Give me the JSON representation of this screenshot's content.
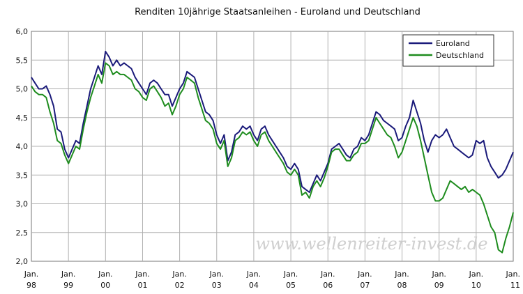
{
  "chart_data": {
    "type": "line",
    "title": "Renditen 10jährige Staatsanleihen - Euroland und Deutschland",
    "xlabel": "",
    "ylabel": "",
    "xlim": [
      1998.0,
      2011.0
    ],
    "ylim": [
      2.0,
      6.0
    ],
    "grid": true,
    "legend_position": "top-right",
    "watermark": "www.wellenreiter-invest.de",
    "y_ticks": [
      {
        "value": 2.0,
        "label": "2,0"
      },
      {
        "value": 2.5,
        "label": "2,5"
      },
      {
        "value": 3.0,
        "label": "3,0"
      },
      {
        "value": 3.5,
        "label": "3,5"
      },
      {
        "value": 4.0,
        "label": "4,0"
      },
      {
        "value": 4.5,
        "label": "4,5"
      },
      {
        "value": 5.0,
        "label": "5,0"
      },
      {
        "value": 5.5,
        "label": "5,5"
      },
      {
        "value": 6.0,
        "label": "6,0"
      }
    ],
    "x_ticks": [
      {
        "value": 1998,
        "month": "Jan.",
        "year": "98"
      },
      {
        "value": 1999,
        "month": "Jan.",
        "year": "99"
      },
      {
        "value": 2000,
        "month": "Jan.",
        "year": "00"
      },
      {
        "value": 2001,
        "month": "Jan.",
        "year": "01"
      },
      {
        "value": 2002,
        "month": "Jan.",
        "year": "02"
      },
      {
        "value": 2003,
        "month": "Jan.",
        "year": "03"
      },
      {
        "value": 2004,
        "month": "Jan.",
        "year": "04"
      },
      {
        "value": 2005,
        "month": "Jan.",
        "year": "05"
      },
      {
        "value": 2006,
        "month": "Jan.",
        "year": "06"
      },
      {
        "value": 2007,
        "month": "Jan.",
        "year": "07"
      },
      {
        "value": 2008,
        "month": "Jan.",
        "year": "08"
      },
      {
        "value": 2009,
        "month": "Jan.",
        "year": "09"
      },
      {
        "value": 2010,
        "month": "Jan.",
        "year": "10"
      },
      {
        "value": 2011,
        "month": "Jan.",
        "year": "11"
      }
    ],
    "series": [
      {
        "name": "Euroland",
        "color": "#1a1a7a",
        "points": [
          [
            1998.0,
            5.2
          ],
          [
            1998.1,
            5.1
          ],
          [
            1998.2,
            5.0
          ],
          [
            1998.3,
            5.0
          ],
          [
            1998.4,
            5.05
          ],
          [
            1998.5,
            4.9
          ],
          [
            1998.6,
            4.7
          ],
          [
            1998.7,
            4.3
          ],
          [
            1998.8,
            4.25
          ],
          [
            1998.9,
            3.95
          ],
          [
            1999.0,
            3.8
          ],
          [
            1999.1,
            3.95
          ],
          [
            1999.2,
            4.1
          ],
          [
            1999.3,
            4.05
          ],
          [
            1999.4,
            4.4
          ],
          [
            1999.5,
            4.7
          ],
          [
            1999.6,
            5.0
          ],
          [
            1999.7,
            5.2
          ],
          [
            1999.8,
            5.4
          ],
          [
            1999.9,
            5.25
          ],
          [
            2000.0,
            5.65
          ],
          [
            2000.1,
            5.55
          ],
          [
            2000.2,
            5.4
          ],
          [
            2000.3,
            5.5
          ],
          [
            2000.4,
            5.4
          ],
          [
            2000.5,
            5.45
          ],
          [
            2000.6,
            5.4
          ],
          [
            2000.7,
            5.35
          ],
          [
            2000.8,
            5.2
          ],
          [
            2000.9,
            5.1
          ],
          [
            2001.0,
            5.0
          ],
          [
            2001.1,
            4.9
          ],
          [
            2001.2,
            5.1
          ],
          [
            2001.3,
            5.15
          ],
          [
            2001.4,
            5.1
          ],
          [
            2001.5,
            5.0
          ],
          [
            2001.6,
            4.9
          ],
          [
            2001.7,
            4.9
          ],
          [
            2001.8,
            4.7
          ],
          [
            2001.9,
            4.85
          ],
          [
            2002.0,
            5.0
          ],
          [
            2002.1,
            5.1
          ],
          [
            2002.2,
            5.3
          ],
          [
            2002.3,
            5.25
          ],
          [
            2002.4,
            5.2
          ],
          [
            2002.5,
            5.0
          ],
          [
            2002.6,
            4.8
          ],
          [
            2002.7,
            4.6
          ],
          [
            2002.8,
            4.55
          ],
          [
            2002.9,
            4.45
          ],
          [
            2003.0,
            4.2
          ],
          [
            2003.1,
            4.05
          ],
          [
            2003.2,
            4.2
          ],
          [
            2003.3,
            3.75
          ],
          [
            2003.4,
            3.9
          ],
          [
            2003.5,
            4.2
          ],
          [
            2003.6,
            4.25
          ],
          [
            2003.7,
            4.35
          ],
          [
            2003.8,
            4.3
          ],
          [
            2003.9,
            4.35
          ],
          [
            2004.0,
            4.2
          ],
          [
            2004.1,
            4.1
          ],
          [
            2004.2,
            4.3
          ],
          [
            2004.3,
            4.35
          ],
          [
            2004.4,
            4.2
          ],
          [
            2004.5,
            4.1
          ],
          [
            2004.6,
            4.0
          ],
          [
            2004.7,
            3.9
          ],
          [
            2004.8,
            3.8
          ],
          [
            2004.9,
            3.65
          ],
          [
            2005.0,
            3.6
          ],
          [
            2005.1,
            3.7
          ],
          [
            2005.2,
            3.6
          ],
          [
            2005.3,
            3.3
          ],
          [
            2005.4,
            3.25
          ],
          [
            2005.5,
            3.2
          ],
          [
            2005.6,
            3.35
          ],
          [
            2005.7,
            3.5
          ],
          [
            2005.8,
            3.4
          ],
          [
            2005.9,
            3.55
          ],
          [
            2006.0,
            3.7
          ],
          [
            2006.1,
            3.95
          ],
          [
            2006.2,
            4.0
          ],
          [
            2006.3,
            4.05
          ],
          [
            2006.4,
            3.95
          ],
          [
            2006.5,
            3.85
          ],
          [
            2006.6,
            3.8
          ],
          [
            2006.7,
            3.95
          ],
          [
            2006.8,
            4.0
          ],
          [
            2006.9,
            4.15
          ],
          [
            2007.0,
            4.1
          ],
          [
            2007.1,
            4.2
          ],
          [
            2007.2,
            4.4
          ],
          [
            2007.3,
            4.6
          ],
          [
            2007.4,
            4.55
          ],
          [
            2007.5,
            4.45
          ],
          [
            2007.6,
            4.4
          ],
          [
            2007.7,
            4.35
          ],
          [
            2007.8,
            4.3
          ],
          [
            2007.9,
            4.1
          ],
          [
            2008.0,
            4.15
          ],
          [
            2008.1,
            4.35
          ],
          [
            2008.2,
            4.5
          ],
          [
            2008.3,
            4.8
          ],
          [
            2008.4,
            4.6
          ],
          [
            2008.5,
            4.4
          ],
          [
            2008.6,
            4.1
          ],
          [
            2008.7,
            3.9
          ],
          [
            2008.8,
            4.1
          ],
          [
            2008.9,
            4.2
          ],
          [
            2009.0,
            4.15
          ],
          [
            2009.1,
            4.2
          ],
          [
            2009.2,
            4.3
          ],
          [
            2009.3,
            4.15
          ],
          [
            2009.4,
            4.0
          ],
          [
            2009.5,
            3.95
          ],
          [
            2009.6,
            3.9
          ],
          [
            2009.7,
            3.85
          ],
          [
            2009.8,
            3.8
          ],
          [
            2009.9,
            3.85
          ],
          [
            2010.0,
            4.1
          ],
          [
            2010.1,
            4.05
          ],
          [
            2010.2,
            4.1
          ],
          [
            2010.3,
            3.8
          ],
          [
            2010.4,
            3.65
          ],
          [
            2010.5,
            3.55
          ],
          [
            2010.6,
            3.45
          ],
          [
            2010.7,
            3.5
          ],
          [
            2010.8,
            3.6
          ],
          [
            2010.9,
            3.75
          ],
          [
            2011.0,
            3.9
          ]
        ]
      },
      {
        "name": "Deutschland",
        "color": "#1e8c1e",
        "points": [
          [
            1998.0,
            5.05
          ],
          [
            1998.1,
            4.95
          ],
          [
            1998.2,
            4.9
          ],
          [
            1998.3,
            4.9
          ],
          [
            1998.4,
            4.85
          ],
          [
            1998.5,
            4.6
          ],
          [
            1998.6,
            4.4
          ],
          [
            1998.7,
            4.1
          ],
          [
            1998.8,
            4.05
          ],
          [
            1998.9,
            3.85
          ],
          [
            1999.0,
            3.7
          ],
          [
            1999.1,
            3.85
          ],
          [
            1999.2,
            4.0
          ],
          [
            1999.3,
            3.95
          ],
          [
            1999.4,
            4.3
          ],
          [
            1999.5,
            4.6
          ],
          [
            1999.6,
            4.85
          ],
          [
            1999.7,
            5.05
          ],
          [
            1999.8,
            5.25
          ],
          [
            1999.9,
            5.1
          ],
          [
            2000.0,
            5.45
          ],
          [
            2000.1,
            5.4
          ],
          [
            2000.2,
            5.25
          ],
          [
            2000.3,
            5.3
          ],
          [
            2000.4,
            5.25
          ],
          [
            2000.5,
            5.25
          ],
          [
            2000.6,
            5.2
          ],
          [
            2000.7,
            5.15
          ],
          [
            2000.8,
            5.0
          ],
          [
            2000.9,
            4.95
          ],
          [
            2001.0,
            4.85
          ],
          [
            2001.1,
            4.8
          ],
          [
            2001.2,
            5.0
          ],
          [
            2001.3,
            5.05
          ],
          [
            2001.4,
            4.95
          ],
          [
            2001.5,
            4.85
          ],
          [
            2001.6,
            4.7
          ],
          [
            2001.7,
            4.75
          ],
          [
            2001.8,
            4.55
          ],
          [
            2001.9,
            4.7
          ],
          [
            2002.0,
            4.9
          ],
          [
            2002.1,
            5.0
          ],
          [
            2002.2,
            5.2
          ],
          [
            2002.3,
            5.15
          ],
          [
            2002.4,
            5.1
          ],
          [
            2002.5,
            4.85
          ],
          [
            2002.6,
            4.65
          ],
          [
            2002.7,
            4.45
          ],
          [
            2002.8,
            4.4
          ],
          [
            2002.9,
            4.3
          ],
          [
            2003.0,
            4.05
          ],
          [
            2003.1,
            3.95
          ],
          [
            2003.2,
            4.1
          ],
          [
            2003.3,
            3.65
          ],
          [
            2003.4,
            3.8
          ],
          [
            2003.5,
            4.1
          ],
          [
            2003.6,
            4.15
          ],
          [
            2003.7,
            4.25
          ],
          [
            2003.8,
            4.2
          ],
          [
            2003.9,
            4.25
          ],
          [
            2004.0,
            4.1
          ],
          [
            2004.1,
            4.0
          ],
          [
            2004.2,
            4.2
          ],
          [
            2004.3,
            4.25
          ],
          [
            2004.4,
            4.1
          ],
          [
            2004.5,
            4.0
          ],
          [
            2004.6,
            3.9
          ],
          [
            2004.7,
            3.8
          ],
          [
            2004.8,
            3.7
          ],
          [
            2004.9,
            3.55
          ],
          [
            2005.0,
            3.5
          ],
          [
            2005.1,
            3.6
          ],
          [
            2005.2,
            3.5
          ],
          [
            2005.3,
            3.15
          ],
          [
            2005.4,
            3.2
          ],
          [
            2005.5,
            3.1
          ],
          [
            2005.6,
            3.3
          ],
          [
            2005.7,
            3.4
          ],
          [
            2005.8,
            3.3
          ],
          [
            2005.9,
            3.45
          ],
          [
            2006.0,
            3.65
          ],
          [
            2006.1,
            3.9
          ],
          [
            2006.2,
            3.95
          ],
          [
            2006.3,
            3.95
          ],
          [
            2006.4,
            3.85
          ],
          [
            2006.5,
            3.75
          ],
          [
            2006.6,
            3.75
          ],
          [
            2006.7,
            3.85
          ],
          [
            2006.8,
            3.9
          ],
          [
            2006.9,
            4.05
          ],
          [
            2007.0,
            4.05
          ],
          [
            2007.1,
            4.1
          ],
          [
            2007.2,
            4.3
          ],
          [
            2007.3,
            4.5
          ],
          [
            2007.4,
            4.4
          ],
          [
            2007.5,
            4.3
          ],
          [
            2007.6,
            4.2
          ],
          [
            2007.7,
            4.15
          ],
          [
            2007.8,
            4.0
          ],
          [
            2007.9,
            3.8
          ],
          [
            2008.0,
            3.9
          ],
          [
            2008.1,
            4.1
          ],
          [
            2008.2,
            4.3
          ],
          [
            2008.3,
            4.5
          ],
          [
            2008.4,
            4.35
          ],
          [
            2008.5,
            4.1
          ],
          [
            2008.6,
            3.8
          ],
          [
            2008.7,
            3.5
          ],
          [
            2008.8,
            3.2
          ],
          [
            2008.9,
            3.05
          ],
          [
            2009.0,
            3.05
          ],
          [
            2009.1,
            3.1
          ],
          [
            2009.2,
            3.25
          ],
          [
            2009.3,
            3.4
          ],
          [
            2009.4,
            3.35
          ],
          [
            2009.5,
            3.3
          ],
          [
            2009.6,
            3.25
          ],
          [
            2009.7,
            3.3
          ],
          [
            2009.8,
            3.2
          ],
          [
            2009.9,
            3.25
          ],
          [
            2010.0,
            3.2
          ],
          [
            2010.1,
            3.15
          ],
          [
            2010.2,
            3.0
          ],
          [
            2010.3,
            2.8
          ],
          [
            2010.4,
            2.6
          ],
          [
            2010.5,
            2.5
          ],
          [
            2010.6,
            2.2
          ],
          [
            2010.7,
            2.15
          ],
          [
            2010.8,
            2.4
          ],
          [
            2010.9,
            2.6
          ],
          [
            2011.0,
            2.85
          ]
        ]
      }
    ]
  }
}
